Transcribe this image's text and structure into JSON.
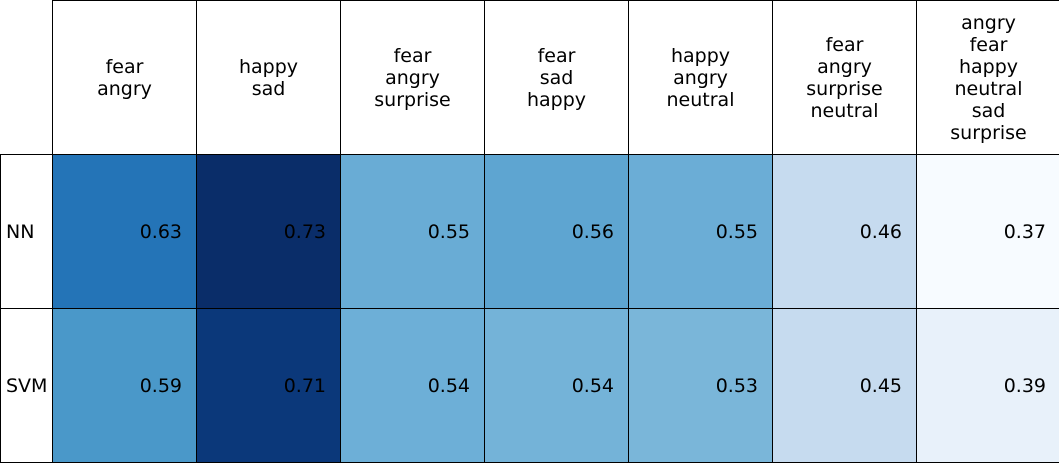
{
  "chart_data": {
    "type": "heatmap",
    "title": "",
    "colormap": "Blues",
    "value_range": [
      0.37,
      0.73
    ],
    "columns": [
      [
        "fear",
        "angry"
      ],
      [
        "happy",
        "sad"
      ],
      [
        "fear",
        "angry",
        "surprise"
      ],
      [
        "fear",
        "sad",
        "happy"
      ],
      [
        "happy",
        "angry",
        "neutral"
      ],
      [
        "fear",
        "angry",
        "surprise",
        "neutral"
      ],
      [
        "angry",
        "fear",
        "happy",
        "neutral",
        "sad",
        "surprise"
      ]
    ],
    "rows": [
      {
        "label": "NN",
        "values": [
          0.63,
          0.73,
          0.55,
          0.56,
          0.55,
          0.46,
          0.37
        ],
        "display": [
          "0.63",
          "0.73",
          "0.55",
          "0.56",
          "0.55",
          "0.46",
          "0.37"
        ],
        "colors": [
          "#2474b7",
          "#0a2d69",
          "#69acd5",
          "#5ea5d1",
          "#6badd6",
          "#c6dbef",
          "#f7fbff"
        ]
      },
      {
        "label": "SVM",
        "values": [
          0.59,
          0.71,
          0.54,
          0.54,
          0.53,
          0.45,
          0.39
        ],
        "display": [
          "0.59",
          "0.71",
          "0.54",
          "0.54",
          "0.53",
          "0.45",
          "0.39"
        ],
        "colors": [
          "#4a98c9",
          "#0b387a",
          "#6dafd7",
          "#74b3d8",
          "#7ab6d9",
          "#c6dbef",
          "#e8f1fa"
        ]
      }
    ]
  }
}
